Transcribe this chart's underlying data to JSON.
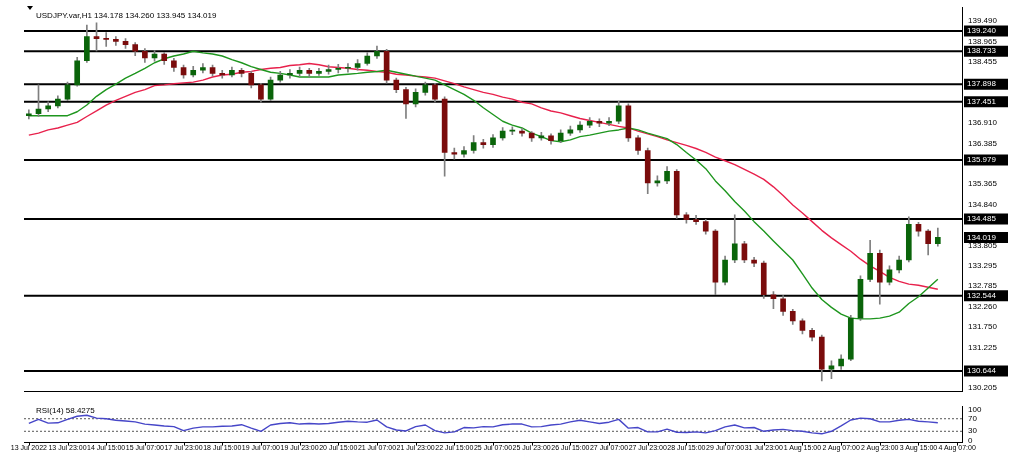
{
  "chart_data": [
    {
      "type": "candlestick",
      "title": "USDJPY.var,H1 134.178 134.260 133.945 134.019",
      "categories": [
        null,
        null,
        null,
        null,
        null,
        null,
        null,
        null,
        null,
        null,
        null,
        null,
        null,
        null,
        null,
        null,
        null,
        null,
        null,
        null,
        null,
        null,
        null,
        null,
        null,
        null,
        null,
        null,
        null,
        null,
        null,
        null,
        null,
        null,
        null,
        null,
        null,
        null,
        null,
        null,
        null,
        null,
        null,
        null,
        null,
        null,
        null,
        null,
        null,
        null,
        null,
        null,
        null,
        null,
        null,
        null,
        null,
        null,
        null,
        null,
        null,
        null,
        null,
        null,
        null,
        null,
        null,
        null,
        null,
        null,
        null,
        null,
        null,
        null,
        null,
        null,
        null,
        null,
        null,
        null,
        null,
        null,
        null,
        null,
        null,
        null,
        null,
        null,
        null,
        null,
        null,
        null,
        null,
        null,
        null,
        null,
        null
      ],
      "ohlc": [
        [
          137.1,
          137.25,
          137.02,
          137.15
        ],
        [
          137.15,
          137.88,
          137.08,
          137.27
        ],
        [
          137.27,
          137.45,
          137.2,
          137.35
        ],
        [
          137.35,
          137.6,
          137.3,
          137.52
        ],
        [
          137.52,
          137.95,
          137.48,
          137.88
        ],
        [
          137.88,
          138.58,
          137.85,
          138.49
        ],
        [
          138.49,
          139.39,
          138.45,
          139.1
        ],
        [
          139.1,
          139.45,
          138.74,
          139.05
        ],
        [
          139.05,
          139.2,
          138.85,
          139.03
        ],
        [
          139.03,
          139.1,
          138.88,
          138.98
        ],
        [
          138.98,
          139.05,
          138.8,
          138.9
        ],
        [
          138.9,
          138.95,
          138.62,
          138.73
        ],
        [
          138.73,
          138.8,
          138.45,
          138.56
        ],
        [
          138.56,
          138.75,
          138.48,
          138.66
        ],
        [
          138.66,
          138.7,
          138.4,
          138.49
        ],
        [
          138.49,
          138.55,
          138.22,
          138.32
        ],
        [
          138.32,
          138.38,
          138.05,
          138.13
        ],
        [
          138.13,
          138.35,
          138.08,
          138.25
        ],
        [
          138.25,
          138.42,
          138.18,
          138.32
        ],
        [
          138.32,
          138.38,
          138.1,
          138.17
        ],
        [
          138.17,
          138.25,
          138.05,
          138.13
        ],
        [
          138.13,
          138.33,
          138.08,
          138.25
        ],
        [
          138.25,
          138.3,
          138.08,
          138.17
        ],
        [
          138.17,
          138.22,
          137.8,
          137.88
        ],
        [
          137.88,
          137.92,
          137.44,
          137.52
        ],
        [
          137.52,
          138.08,
          137.48,
          138.0
        ],
        [
          138.0,
          138.22,
          137.95,
          138.13
        ],
        [
          138.13,
          138.27,
          138.05,
          138.17
        ],
        [
          138.17,
          138.33,
          138.1,
          138.25
        ],
        [
          138.25,
          138.3,
          138.08,
          138.17
        ],
        [
          138.17,
          138.3,
          138.12,
          138.22
        ],
        [
          138.22,
          138.38,
          138.15,
          138.27
        ],
        [
          138.27,
          138.4,
          138.18,
          138.3
        ],
        [
          138.3,
          138.42,
          138.2,
          138.32
        ],
        [
          138.32,
          138.52,
          138.25,
          138.42
        ],
        [
          138.42,
          138.7,
          138.38,
          138.61
        ],
        [
          138.61,
          138.86,
          138.55,
          138.73
        ],
        [
          138.73,
          138.78,
          137.92,
          138.0
        ],
        [
          138.0,
          138.05,
          137.68,
          137.76
        ],
        [
          137.76,
          137.82,
          137.03,
          137.4
        ],
        [
          137.4,
          137.78,
          137.32,
          137.69
        ],
        [
          137.69,
          137.95,
          137.62,
          137.88
        ],
        [
          137.88,
          137.92,
          137.45,
          137.52
        ],
        [
          137.52,
          137.58,
          135.57,
          136.17
        ],
        [
          136.17,
          136.28,
          136.0,
          136.13
        ],
        [
          136.13,
          136.32,
          136.05,
          136.22
        ],
        [
          136.22,
          136.6,
          136.15,
          136.42
        ],
        [
          136.42,
          136.5,
          136.28,
          136.37
        ],
        [
          136.37,
          136.62,
          136.3,
          136.54
        ],
        [
          136.54,
          136.8,
          136.48,
          136.71
        ],
        [
          136.71,
          136.82,
          136.62,
          136.71
        ],
        [
          136.71,
          136.78,
          136.58,
          136.66
        ],
        [
          136.66,
          136.7,
          136.45,
          136.54
        ],
        [
          136.54,
          136.68,
          136.48,
          136.59
        ],
        [
          136.59,
          136.64,
          136.38,
          136.47
        ],
        [
          136.47,
          136.74,
          136.42,
          136.66
        ],
        [
          136.66,
          136.84,
          136.6,
          136.74
        ],
        [
          136.74,
          136.95,
          136.68,
          136.86
        ],
        [
          136.86,
          137.05,
          136.8,
          136.96
        ],
        [
          136.96,
          137.02,
          136.82,
          136.91
        ],
        [
          136.91,
          137.05,
          136.85,
          136.96
        ],
        [
          136.96,
          137.47,
          136.9,
          137.35
        ],
        [
          137.35,
          137.4,
          136.45,
          136.54
        ],
        [
          136.54,
          136.6,
          136.12,
          136.22
        ],
        [
          136.22,
          136.28,
          135.13,
          135.4
        ],
        [
          135.4,
          135.58,
          135.32,
          135.45
        ],
        [
          135.45,
          135.81,
          135.38,
          135.69
        ],
        [
          135.69,
          135.74,
          134.5,
          134.59
        ],
        [
          134.59,
          134.65,
          134.38,
          134.47
        ],
        [
          134.47,
          134.58,
          134.35,
          134.42
        ],
        [
          134.42,
          134.48,
          134.1,
          134.18
        ],
        [
          134.18,
          134.22,
          132.57,
          132.89
        ],
        [
          132.89,
          133.55,
          132.82,
          133.45
        ],
        [
          133.45,
          134.59,
          133.38,
          133.86
        ],
        [
          133.86,
          133.92,
          133.38,
          133.45
        ],
        [
          133.45,
          133.52,
          133.28,
          133.37
        ],
        [
          133.37,
          133.42,
          132.48,
          132.57
        ],
        [
          132.57,
          132.65,
          132.22,
          132.47
        ],
        [
          132.47,
          132.55,
          132.05,
          132.15
        ],
        [
          132.15,
          132.2,
          131.82,
          131.91
        ],
        [
          131.91,
          131.96,
          131.58,
          131.67
        ],
        [
          131.67,
          131.72,
          131.4,
          131.5
        ],
        [
          131.5,
          131.55,
          130.39,
          130.69
        ],
        [
          130.69,
          130.9,
          130.45,
          130.77
        ],
        [
          130.77,
          131.05,
          130.68,
          130.94
        ],
        [
          130.94,
          132.05,
          130.9,
          131.98
        ],
        [
          131.98,
          133.05,
          131.92,
          132.96
        ],
        [
          132.96,
          133.95,
          132.9,
          133.62
        ],
        [
          133.62,
          133.7,
          132.33,
          132.89
        ],
        [
          132.89,
          133.3,
          132.82,
          133.2
        ],
        [
          133.2,
          133.55,
          133.12,
          133.45
        ],
        [
          133.45,
          134.54,
          133.4,
          134.35
        ],
        [
          134.35,
          134.4,
          134.05,
          134.18
        ],
        [
          134.18,
          134.22,
          133.58,
          133.86
        ],
        [
          133.86,
          134.26,
          133.8,
          134.02
        ],
        null,
        null
      ],
      "series": [
        {
          "type": "line",
          "color": "#1e961e",
          "values": [
            137.1,
            137.1,
            137.1,
            137.1,
            137.1,
            137.2,
            137.37,
            137.59,
            137.76,
            137.9,
            138.05,
            138.17,
            138.3,
            138.44,
            138.54,
            138.61,
            138.66,
            138.73,
            138.69,
            138.66,
            138.61,
            138.52,
            138.44,
            138.34,
            138.27,
            138.2,
            138.17,
            138.13,
            138.08,
            138.08,
            138.08,
            138.08,
            138.13,
            138.15,
            138.17,
            138.2,
            138.22,
            138.25,
            138.2,
            138.15,
            138.1,
            138.05,
            138.0,
            137.88,
            137.76,
            137.64,
            137.49,
            137.3,
            137.13,
            136.96,
            136.86,
            136.79,
            136.66,
            136.57,
            136.47,
            136.44,
            136.49,
            136.57,
            136.61,
            136.66,
            136.71,
            136.74,
            136.79,
            136.74,
            136.66,
            136.59,
            136.52,
            136.37,
            136.17,
            135.98,
            135.76,
            135.45,
            135.2,
            134.93,
            134.69,
            134.42,
            134.18,
            133.93,
            133.69,
            133.45,
            133.1,
            132.74,
            132.45,
            132.25,
            132.08,
            131.98,
            131.96,
            131.96,
            131.98,
            132.03,
            132.13,
            132.35,
            132.52,
            132.74,
            132.96,
            null,
            null
          ]
        },
        {
          "type": "line",
          "color": "#e8214c",
          "values": [
            136.61,
            136.66,
            136.74,
            136.79,
            136.86,
            136.93,
            137.08,
            137.22,
            137.37,
            137.49,
            137.59,
            137.69,
            137.76,
            137.86,
            137.88,
            137.91,
            137.93,
            137.95,
            138.0,
            138.08,
            138.13,
            138.15,
            138.2,
            138.22,
            138.27,
            138.3,
            138.32,
            138.37,
            138.39,
            138.42,
            138.39,
            138.34,
            138.32,
            138.3,
            138.27,
            138.25,
            138.22,
            138.2,
            138.15,
            138.13,
            138.1,
            138.08,
            138.05,
            137.98,
            137.91,
            137.83,
            137.76,
            137.69,
            137.64,
            137.57,
            137.52,
            137.44,
            137.4,
            137.3,
            137.22,
            137.17,
            137.1,
            137.03,
            136.98,
            136.93,
            136.88,
            136.83,
            136.79,
            136.71,
            136.64,
            136.57,
            136.49,
            136.42,
            136.35,
            136.27,
            136.17,
            136.05,
            135.96,
            135.86,
            135.74,
            135.62,
            135.49,
            135.3,
            135.08,
            134.84,
            134.64,
            134.42,
            134.2,
            134.01,
            133.84,
            133.67,
            133.47,
            133.3,
            133.16,
            133.01,
            132.91,
            132.84,
            132.81,
            132.76,
            132.71,
            null,
            null
          ]
        }
      ],
      "ylim": [
        130.13,
        139.83
      ],
      "yticks": [
        {
          "value": 130.205,
          "label": "130.205"
        },
        {
          "value": 131.225,
          "label": "131.225"
        },
        {
          "value": 131.75,
          "label": "131.750"
        },
        {
          "value": 132.26,
          "label": "132.260"
        },
        {
          "value": 132.785,
          "label": "132.785"
        },
        {
          "value": 133.295,
          "label": "133.295"
        },
        {
          "value": 133.805,
          "label": "133.805"
        },
        {
          "value": 134.84,
          "label": "134.840"
        },
        {
          "value": 135.365,
          "label": "135.365"
        },
        {
          "value": 136.385,
          "label": "136.385"
        },
        {
          "value": 136.91,
          "label": "136.910"
        },
        {
          "value": 138.455,
          "label": "138.455"
        },
        {
          "value": 138.965,
          "label": "138.965"
        },
        {
          "value": 139.49,
          "label": "139.490"
        }
      ],
      "ref_lines": [
        {
          "axis": "y",
          "value": 139.24,
          "label": "139.240"
        },
        {
          "axis": "y",
          "value": 138.733,
          "label": "138.733"
        },
        {
          "axis": "y",
          "value": 137.898,
          "label": "137.898"
        },
        {
          "axis": "y",
          "value": 137.451,
          "label": "137.451"
        },
        {
          "axis": "y",
          "value": 135.979,
          "label": "135.979"
        },
        {
          "axis": "y",
          "value": 134.485,
          "label": "134.485"
        },
        {
          "axis": "y",
          "value": 132.544,
          "label": "132.544"
        },
        {
          "axis": "y",
          "value": 130.644,
          "label": "130.644"
        }
      ],
      "annotations": [
        "134.019"
      ],
      "tick_labels": "y",
      "grid": false,
      "legend": false,
      "marker": "none"
    },
    {
      "type": "line",
      "title": "RSI(14) 58.4275",
      "categories": [
        "13 Jul 2022",
        null,
        null,
        null,
        "13 Jul 23:00",
        null,
        null,
        null,
        "14 Jul 15:00",
        null,
        null,
        null,
        "15 Jul 07:00",
        null,
        null,
        null,
        "17 Jul 23:00",
        null,
        null,
        null,
        "18 Jul 15:00",
        null,
        null,
        null,
        "19 Jul 07:00",
        null,
        null,
        null,
        "19 Jul 23:00",
        null,
        null,
        null,
        "20 Jul 15:00",
        null,
        null,
        null,
        "21 Jul 07:00",
        null,
        null,
        null,
        "21 Jul 23:00",
        null,
        null,
        null,
        "22 Jul 15:00",
        null,
        null,
        null,
        "25 Jul 07:00",
        null,
        null,
        null,
        "25 Jul 23:00",
        null,
        null,
        null,
        "26 Jul 15:00",
        null,
        null,
        null,
        "27 Jul 07:00",
        null,
        null,
        null,
        "27 Jul 23:00",
        null,
        null,
        null,
        "28 Jul 15:00",
        null,
        null,
        null,
        "29 Jul 07:00",
        null,
        null,
        null,
        "31 Jul 23:00",
        null,
        null,
        null,
        "1 Aug 15:00",
        null,
        null,
        null,
        "2 Aug 07:00",
        null,
        null,
        null,
        "2 Aug 23:00",
        null,
        null,
        null,
        "3 Aug 15:00",
        null,
        null,
        null,
        "4 Aug 07:00"
      ],
      "series": [
        {
          "color": "#4646c8",
          "values": [
            55,
            68,
            56,
            57,
            68,
            78,
            81,
            72,
            70,
            65,
            63,
            60,
            53,
            50,
            47,
            45,
            32,
            40,
            44,
            44,
            46,
            47,
            51,
            40,
            30,
            50,
            55,
            57,
            53,
            55,
            53,
            55,
            59,
            62,
            60,
            59,
            66,
            44,
            34,
            31,
            45,
            50,
            32,
            25,
            28,
            42,
            41,
            45,
            44,
            51,
            53,
            53,
            44,
            45,
            50,
            53,
            60,
            65,
            60,
            55,
            59,
            68,
            40,
            42,
            28,
            28,
            37,
            27,
            26,
            28,
            25,
            32,
            44,
            50,
            41,
            42,
            30,
            34,
            36,
            32,
            30,
            25,
            22,
            30,
            47,
            66,
            72,
            70,
            60,
            60,
            65,
            68,
            62,
            60,
            57,
            null,
            null
          ]
        }
      ],
      "ylim": [
        -6,
        108
      ],
      "yticks": [
        0,
        30,
        70,
        100
      ],
      "ref_lines": [
        {
          "axis": "y",
          "value": 30,
          "line_style": "dotted"
        },
        {
          "axis": "y",
          "value": 70,
          "line_style": "dotted"
        }
      ],
      "grid": false,
      "legend": false,
      "marker": "none"
    }
  ]
}
